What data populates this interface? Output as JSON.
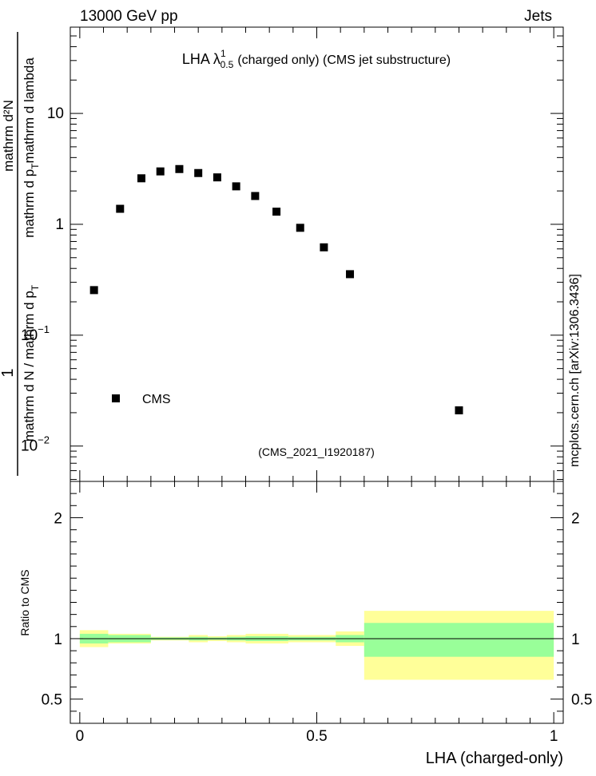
{
  "header": {
    "left": "13000 GeV pp",
    "right": "Jets"
  },
  "title": {
    "main": "LHA λ",
    "sup": "1",
    "sub": "0.5",
    "rest": "(charged only) (CMS jet substructure)"
  },
  "watermark": "(CMS_2021_I1920187)",
  "side_label": "mcplots.cern.ch [arXiv:1306.3436]",
  "upper_ylabel": {
    "numerator": "mathrm d²N",
    "denominator_a": "mathrm d p",
    "denominator_a_sub": "T",
    "denominator_b": "mathrm d lambda",
    "prefix_one": "1",
    "prefix_den_a": "mathrm d N / mathrm d p",
    "prefix_den_sub": "T"
  },
  "lower_ylabel": "Ratio to CMS",
  "xlabel": "LHA (charged-only)",
  "legend": {
    "label": "CMS",
    "marker_color": "#000000"
  },
  "colors": {
    "data": "#000000",
    "band_inner": "#99ff99",
    "band_outer": "#ffff99",
    "frame": "#000000",
    "watermark": "#999999",
    "side_label": "#808080"
  },
  "upper_ticks": {
    "major": [
      {
        "value": 0.01,
        "base": "10",
        "exp": "−2"
      },
      {
        "value": 0.1,
        "base": "10",
        "exp": "−1"
      },
      {
        "value": 1,
        "base": "1",
        "exp": ""
      },
      {
        "value": 10,
        "base": "10",
        "exp": ""
      }
    ]
  },
  "lower_ticks": [
    {
      "value": 0.5,
      "label": "0.5"
    },
    {
      "value": 1,
      "label": "1"
    },
    {
      "value": 2,
      "label": "2"
    }
  ],
  "x_ticks": [
    {
      "value": 0,
      "label": "0"
    },
    {
      "value": 0.5,
      "label": "0.5"
    },
    {
      "value": 1,
      "label": "1"
    }
  ],
  "chart_data": [
    {
      "type": "scatter",
      "name": "main",
      "series": [
        {
          "name": "CMS",
          "x": [
            0.03,
            0.085,
            0.13,
            0.17,
            0.21,
            0.25,
            0.29,
            0.33,
            0.37,
            0.415,
            0.465,
            0.515,
            0.57,
            0.8
          ],
          "y": [
            0.255,
            1.38,
            2.6,
            3.0,
            3.15,
            2.9,
            2.65,
            2.2,
            1.8,
            1.3,
            0.93,
            0.62,
            0.355,
            0.021
          ]
        }
      ],
      "xlim": [
        -0.02,
        1.02
      ],
      "ylim": [
        0.0048,
        60
      ],
      "yscale": "log",
      "legend_position": "bottom-left"
    },
    {
      "type": "area",
      "name": "ratio",
      "ylabel": "Ratio to CMS",
      "xlabel": "LHA (charged-only)",
      "xlim": [
        -0.02,
        1.02
      ],
      "ylim": [
        0.3,
        2.3
      ],
      "bins": [
        {
          "x_lo": 0.0,
          "x_hi": 0.06,
          "inner_lo": 0.96,
          "inner_hi": 1.04,
          "outer_lo": 0.93,
          "outer_hi": 1.07
        },
        {
          "x_lo": 0.06,
          "x_hi": 0.15,
          "inner_lo": 0.97,
          "inner_hi": 1.03,
          "outer_lo": 0.96,
          "outer_hi": 1.04
        },
        {
          "x_lo": 0.15,
          "x_hi": 0.23,
          "inner_lo": 0.99,
          "inner_hi": 1.01,
          "outer_lo": 0.985,
          "outer_hi": 1.015
        },
        {
          "x_lo": 0.23,
          "x_hi": 0.27,
          "inner_lo": 0.985,
          "inner_hi": 1.015,
          "outer_lo": 0.97,
          "outer_hi": 1.03
        },
        {
          "x_lo": 0.27,
          "x_hi": 0.31,
          "inner_lo": 0.99,
          "inner_hi": 1.01,
          "outer_lo": 0.98,
          "outer_hi": 1.02
        },
        {
          "x_lo": 0.31,
          "x_hi": 0.35,
          "inner_lo": 0.985,
          "inner_hi": 1.015,
          "outer_lo": 0.97,
          "outer_hi": 1.03
        },
        {
          "x_lo": 0.35,
          "x_hi": 0.44,
          "inner_lo": 0.98,
          "inner_hi": 1.02,
          "outer_lo": 0.96,
          "outer_hi": 1.04
        },
        {
          "x_lo": 0.44,
          "x_hi": 0.54,
          "inner_lo": 0.985,
          "inner_hi": 1.015,
          "outer_lo": 0.97,
          "outer_hi": 1.03
        },
        {
          "x_lo": 0.54,
          "x_hi": 0.6,
          "inner_lo": 0.97,
          "inner_hi": 1.03,
          "outer_lo": 0.94,
          "outer_hi": 1.06
        },
        {
          "x_lo": 0.6,
          "x_hi": 1.0,
          "inner_lo": 0.85,
          "inner_hi": 1.13,
          "outer_lo": 0.66,
          "outer_hi": 1.23
        }
      ],
      "reference_line": 1.0
    }
  ]
}
